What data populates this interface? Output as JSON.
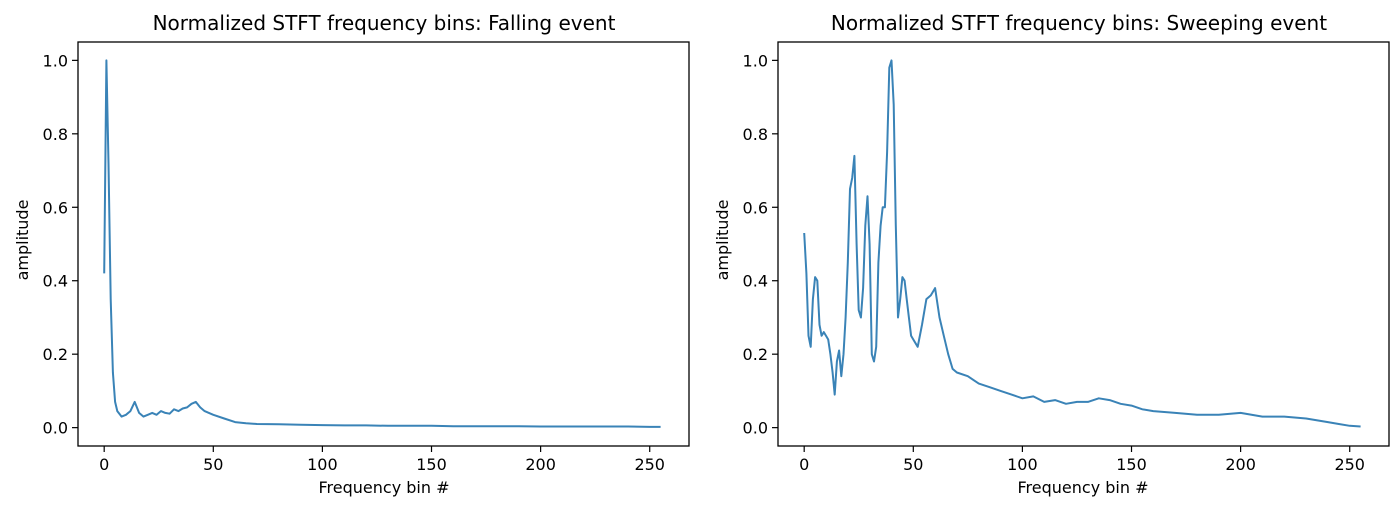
{
  "chart_data": [
    {
      "type": "line",
      "title": "Normalized STFT frequency bins: Falling event",
      "xlabel": "Frequency bin #",
      "ylabel": "amplitude",
      "xlim": [
        -12,
        268
      ],
      "ylim": [
        -0.05,
        1.05
      ],
      "xticks": [
        0,
        50,
        100,
        150,
        200,
        250
      ],
      "yticks": [
        0.0,
        0.2,
        0.4,
        0.6,
        0.8,
        1.0
      ],
      "xtick_labels": [
        "0",
        "50",
        "100",
        "150",
        "200",
        "250"
      ],
      "ytick_labels": [
        "0.0",
        "0.2",
        "0.4",
        "0.6",
        "0.8",
        "1.0"
      ],
      "grid": false,
      "color": "#3a83b7",
      "series": [
        {
          "x": [
            0,
            1,
            2,
            3,
            4,
            5,
            6,
            8,
            10,
            12,
            14,
            16,
            18,
            20,
            22,
            24,
            26,
            28,
            30,
            32,
            34,
            36,
            38,
            40,
            42,
            44,
            46,
            48,
            50,
            55,
            60,
            65,
            70,
            80,
            90,
            100,
            110,
            120,
            130,
            140,
            150,
            160,
            170,
            180,
            190,
            200,
            210,
            220,
            230,
            240,
            250,
            255
          ],
          "y": [
            0.42,
            1.0,
            0.72,
            0.35,
            0.15,
            0.07,
            0.045,
            0.03,
            0.035,
            0.045,
            0.07,
            0.04,
            0.03,
            0.035,
            0.04,
            0.035,
            0.045,
            0.04,
            0.038,
            0.05,
            0.045,
            0.052,
            0.055,
            0.065,
            0.07,
            0.055,
            0.045,
            0.04,
            0.035,
            0.025,
            0.015,
            0.012,
            0.01,
            0.009,
            0.008,
            0.007,
            0.006,
            0.006,
            0.005,
            0.005,
            0.005,
            0.004,
            0.004,
            0.004,
            0.004,
            0.003,
            0.003,
            0.003,
            0.003,
            0.003,
            0.002,
            0.002
          ]
        }
      ]
    },
    {
      "type": "line",
      "title": "Normalized STFT frequency bins: Sweeping event",
      "xlabel": "Frequency bin #",
      "ylabel": "amplitude",
      "xlim": [
        -12,
        268
      ],
      "ylim": [
        -0.05,
        1.05
      ],
      "xticks": [
        0,
        50,
        100,
        150,
        200,
        250
      ],
      "yticks": [
        0.0,
        0.2,
        0.4,
        0.6,
        0.8,
        1.0
      ],
      "xtick_labels": [
        "0",
        "50",
        "100",
        "150",
        "200",
        "250"
      ],
      "ytick_labels": [
        "0.0",
        "0.2",
        "0.4",
        "0.6",
        "0.8",
        "1.0"
      ],
      "grid": false,
      "color": "#3a83b7",
      "series": [
        {
          "x": [
            0,
            1,
            2,
            3,
            4,
            5,
            6,
            7,
            8,
            9,
            10,
            11,
            12,
            13,
            14,
            15,
            16,
            17,
            18,
            19,
            20,
            21,
            22,
            23,
            24,
            25,
            26,
            27,
            28,
            29,
            30,
            31,
            32,
            33,
            34,
            35,
            36,
            37,
            38,
            39,
            40,
            41,
            42,
            43,
            44,
            45,
            46,
            47,
            48,
            49,
            50,
            52,
            54,
            56,
            58,
            60,
            62,
            64,
            66,
            68,
            70,
            75,
            80,
            85,
            90,
            95,
            100,
            105,
            110,
            115,
            120,
            125,
            130,
            135,
            140,
            145,
            150,
            155,
            160,
            170,
            180,
            190,
            200,
            210,
            220,
            230,
            240,
            245,
            250,
            255
          ],
          "y": [
            0.53,
            0.42,
            0.25,
            0.22,
            0.35,
            0.41,
            0.4,
            0.28,
            0.25,
            0.26,
            0.25,
            0.24,
            0.2,
            0.15,
            0.09,
            0.18,
            0.21,
            0.14,
            0.2,
            0.3,
            0.45,
            0.65,
            0.68,
            0.74,
            0.5,
            0.32,
            0.3,
            0.38,
            0.55,
            0.63,
            0.5,
            0.2,
            0.18,
            0.22,
            0.45,
            0.55,
            0.6,
            0.6,
            0.75,
            0.98,
            1.0,
            0.88,
            0.55,
            0.3,
            0.35,
            0.41,
            0.4,
            0.35,
            0.3,
            0.25,
            0.24,
            0.22,
            0.28,
            0.35,
            0.36,
            0.38,
            0.3,
            0.25,
            0.2,
            0.16,
            0.15,
            0.14,
            0.12,
            0.11,
            0.1,
            0.09,
            0.08,
            0.085,
            0.07,
            0.075,
            0.065,
            0.07,
            0.07,
            0.08,
            0.075,
            0.065,
            0.06,
            0.05,
            0.045,
            0.04,
            0.035,
            0.035,
            0.04,
            0.03,
            0.03,
            0.025,
            0.015,
            0.01,
            0.005,
            0.003
          ]
        }
      ]
    }
  ]
}
